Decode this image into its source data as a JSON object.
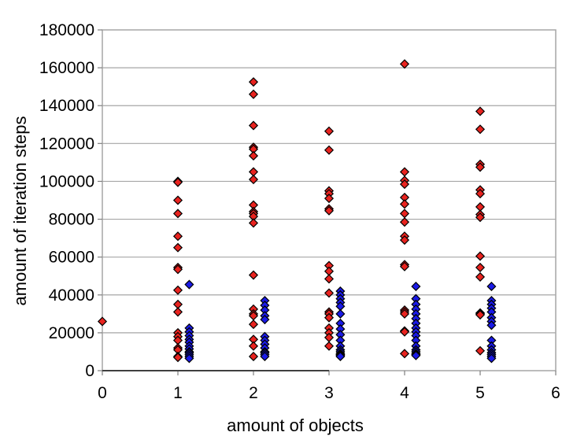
{
  "chart_data": {
    "type": "scatter",
    "title": "",
    "xlabel": "amount of objects",
    "ylabel": "amount of iteration steps",
    "xlim": [
      0,
      6
    ],
    "ylim": [
      0,
      180000
    ],
    "x_ticks": [
      "0",
      "1",
      "2",
      "3",
      "4",
      "5",
      "6"
    ],
    "y_ticks": [
      "0",
      "20000",
      "40000",
      "60000",
      "80000",
      "100000",
      "120000",
      "140000",
      "160000",
      "180000"
    ],
    "grid": "horizontal",
    "legend": "none",
    "series": [
      {
        "color": "#e8231f",
        "marker": "diamond",
        "x": [
          0.0,
          1.0,
          1.0,
          1.0,
          1.0,
          1.0,
          1.0,
          1.0,
          1.0,
          1.0,
          1.0,
          1.0,
          1.0,
          1.0,
          1.0,
          1.0,
          1.0,
          1.0,
          1.0,
          2.0,
          2.0,
          2.0,
          2.0,
          2.0,
          2.0,
          2.0,
          2.0,
          2.0,
          2.0,
          2.0,
          2.0,
          2.0,
          2.0,
          2.0,
          2.0,
          2.0,
          2.0,
          2.0,
          2.0,
          2.0,
          3.0,
          3.0,
          3.0,
          3.0,
          3.0,
          3.0,
          3.0,
          3.0,
          3.0,
          3.0,
          3.0,
          3.0,
          3.0,
          3.0,
          3.0,
          3.0,
          3.0,
          3.0,
          4.0,
          4.0,
          4.0,
          4.0,
          4.0,
          4.0,
          4.0,
          4.0,
          4.0,
          4.0,
          4.0,
          4.0,
          4.0,
          4.0,
          4.0,
          4.0,
          4.0,
          4.0,
          5.0,
          5.0,
          5.0,
          5.0,
          5.0,
          5.0,
          5.0,
          5.0,
          5.0,
          5.0,
          5.0,
          5.0,
          5.0,
          5.0,
          5.0,
          5.0
        ],
        "y": [
          26000,
          100000,
          99500,
          90000,
          83000,
          71000,
          65000,
          54500,
          53500,
          42500,
          35000,
          31000,
          20000,
          18000,
          16000,
          12000,
          11000,
          7500,
          7000,
          152500,
          146000,
          129500,
          118000,
          117000,
          113500,
          105000,
          101000,
          87500,
          84000,
          83000,
          81500,
          78000,
          50500,
          32500,
          30000,
          29000,
          24500,
          16500,
          13000,
          7500,
          126500,
          116500,
          95000,
          93500,
          91000,
          85500,
          84500,
          55500,
          52500,
          48500,
          41000,
          31000,
          30000,
          28000,
          22500,
          20000,
          17500,
          13000,
          162000,
          105000,
          100500,
          98500,
          91500,
          88000,
          83000,
          78500,
          71000,
          69000,
          56000,
          55000,
          32000,
          31000,
          30000,
          21000,
          20500,
          9000,
          137000,
          127500,
          109000,
          107500,
          95500,
          93500,
          86500,
          82500,
          81000,
          60500,
          54500,
          49500,
          30500,
          30000,
          29500,
          10500
        ]
      },
      {
        "color": "#1a1ae6",
        "marker": "diamond",
        "x": [
          1.15,
          1.15,
          1.15,
          1.15,
          1.15,
          1.15,
          1.15,
          1.15,
          1.15,
          1.15,
          1.15,
          1.15,
          1.15,
          2.15,
          2.15,
          2.15,
          2.15,
          2.15,
          2.15,
          2.15,
          2.15,
          2.15,
          2.15,
          2.15,
          2.15,
          2.15,
          3.15,
          3.15,
          3.15,
          3.15,
          3.15,
          3.15,
          3.15,
          3.15,
          3.15,
          3.15,
          3.15,
          3.15,
          3.15,
          3.15,
          3.15,
          3.15,
          3.15,
          4.15,
          4.15,
          4.15,
          4.15,
          4.15,
          4.15,
          4.15,
          4.15,
          4.15,
          4.15,
          4.15,
          4.15,
          4.15,
          4.15,
          4.15,
          4.15,
          4.15,
          5.15,
          5.15,
          5.15,
          5.15,
          5.15,
          5.15,
          5.15,
          5.15,
          5.15,
          5.15,
          5.15,
          5.15,
          5.15,
          5.15,
          5.15
        ],
        "y": [
          45500,
          22500,
          20500,
          18500,
          16500,
          15000,
          13000,
          11500,
          10000,
          9500,
          8500,
          7500,
          6500,
          37000,
          34500,
          32000,
          29000,
          27000,
          18000,
          16000,
          14000,
          12000,
          10000,
          9500,
          8500,
          7500,
          42000,
          40000,
          38000,
          36000,
          34000,
          30000,
          25000,
          22000,
          19000,
          16000,
          13000,
          11000,
          10000,
          9000,
          8500,
          8000,
          7500,
          44500,
          38000,
          35000,
          32500,
          30000,
          27500,
          25000,
          22500,
          20500,
          18500,
          16000,
          13000,
          11000,
          10000,
          9000,
          8500,
          8000,
          44500,
          37000,
          35000,
          33000,
          31000,
          28000,
          26000,
          24000,
          16000,
          13000,
          11000,
          9500,
          8500,
          7500,
          6500
        ]
      }
    ]
  }
}
